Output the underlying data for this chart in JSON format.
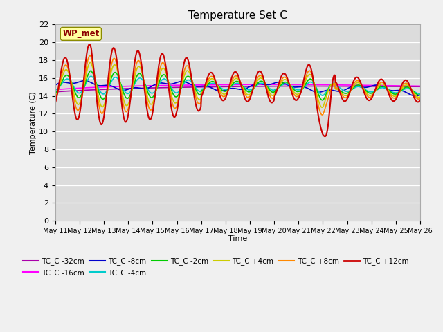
{
  "title": "Temperature Set C",
  "xlabel": "Time",
  "ylabel": "Temperature (C)",
  "ylim": [
    0,
    22
  ],
  "yticks": [
    0,
    2,
    4,
    6,
    8,
    10,
    12,
    14,
    16,
    18,
    20,
    22
  ],
  "x_labels": [
    "May 11",
    "May 12",
    "May 13",
    "May 14",
    "May 15",
    "May 16",
    "May 17",
    "May 18",
    "May 19",
    "May 20",
    "May 21",
    "May 22",
    "May 23",
    "May 24",
    "May 25",
    "May 26"
  ],
  "annotation_text": "WP_met",
  "annotation_color": "#8B0000",
  "annotation_bg": "#FFFFA0",
  "series_colors": {
    "TC_C -32cm": "#AA00AA",
    "TC_C -16cm": "#FF00FF",
    "TC_C -8cm": "#0000CC",
    "TC_C -4cm": "#00CCCC",
    "TC_C -2cm": "#00CC00",
    "TC_C +4cm": "#CCCC00",
    "TC_C +8cm": "#FF8800",
    "TC_C +12cm": "#CC0000"
  },
  "fig_bg": "#F0F0F0",
  "plot_bg": "#DCDCDC"
}
